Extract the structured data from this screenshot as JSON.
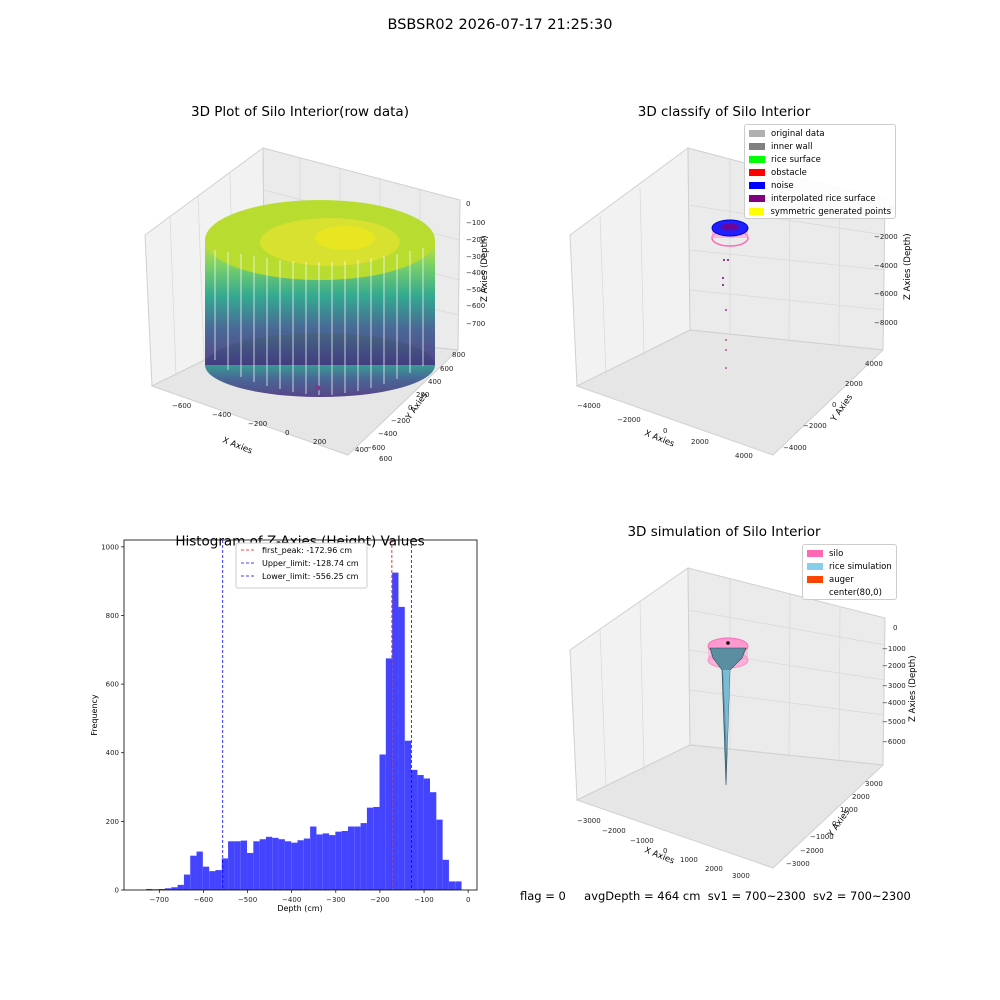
{
  "suptitle": "BSBSR02 2026-07-17 21:25:30",
  "panels": {
    "raw": {
      "title": "3D Plot of Silo Interior(row data)",
      "xlabel": "X Axies",
      "ylabel": "Y Axies",
      "zlabel": "Z Axies (Depth)",
      "xticks": [
        "−600",
        "−400",
        "−200",
        "0",
        "200",
        "400",
        "600"
      ],
      "yticks": [
        "800",
        "600",
        "400",
        "200",
        "0",
        "−200",
        "−400",
        "−600"
      ],
      "zticks": [
        "0",
        "−100",
        "−200",
        "−300",
        "−400",
        "−500",
        "−600",
        "−700"
      ]
    },
    "classify": {
      "title": "3D classify of Silo Interior",
      "xlabel": "X Axies",
      "ylabel": "Y Axies",
      "zlabel": "Z Axies (Depth)",
      "xticks": [
        "−4000",
        "−2000",
        "0",
        "2000",
        "4000"
      ],
      "yticks": [
        "4000",
        "2000",
        "0",
        "−2000",
        "−4000"
      ],
      "zticks": [
        "0",
        "−2000",
        "−4000",
        "−6000",
        "−8000"
      ],
      "legend": [
        {
          "label": "original data",
          "color": "#b0b0b0"
        },
        {
          "label": "inner wall",
          "color": "#808080"
        },
        {
          "label": "rice surface",
          "color": "#00ff00"
        },
        {
          "label": "obstacle",
          "color": "#ff0000"
        },
        {
          "label": "noise",
          "color": "#0000ff"
        },
        {
          "label": "interpolated rice surface",
          "color": "#800080"
        },
        {
          "label": "symmetric generated points",
          "color": "#ffff00"
        }
      ]
    },
    "simulation": {
      "title": "3D simulation of Silo Interior",
      "xlabel": "X Axies",
      "ylabel": "Y Axies",
      "zlabel": "Z Axies (Depth)",
      "xticks": [
        "−3000",
        "−2000",
        "−1000",
        "0",
        "1000",
        "2000",
        "3000"
      ],
      "yticks": [
        "3000",
        "2000",
        "1000",
        "0",
        "−1000",
        "−2000",
        "−3000"
      ],
      "zticks": [
        "0",
        "−1000",
        "−2000",
        "−3000",
        "−4000",
        "−5000",
        "−6000"
      ],
      "legend": [
        {
          "label": "silo",
          "color": "#ff69b4"
        },
        {
          "label": "rice simulation",
          "color": "#87ceeb"
        },
        {
          "label": "auger",
          "color": "#ff4500"
        },
        {
          "label": "center(80,0)",
          "color": "#ffffff"
        }
      ]
    }
  },
  "footer": {
    "flag": "flag = 0",
    "avg": "avgDepth = 464 cm",
    "sv1": "sv1 = 700~2300",
    "sv2": "sv2 = 700~2300"
  },
  "chart_data": {
    "type": "bar",
    "title": "Histogram of Z-Axies (Height) Values",
    "xlabel": "Depth (cm)",
    "ylabel": "Frequency",
    "xlim": [
      -780,
      20
    ],
    "ylim": [
      0,
      1020
    ],
    "xticks": [
      -700,
      -600,
      -500,
      -400,
      -300,
      -200,
      -100,
      0
    ],
    "xtick_labels": [
      "−700",
      "−600",
      "−500",
      "−400",
      "−300",
      "−200",
      "−100",
      "0"
    ],
    "yticks": [
      0,
      200,
      400,
      600,
      800,
      1000
    ],
    "bin_start": -730,
    "bin_width": 14.3,
    "values": [
      3,
      2,
      3,
      5,
      8,
      15,
      45,
      100,
      112,
      68,
      55,
      58,
      92,
      142,
      142,
      144,
      108,
      142,
      148,
      155,
      152,
      148,
      142,
      138,
      145,
      150,
      185,
      162,
      165,
      160,
      170,
      172,
      185,
      185,
      195,
      240,
      242,
      395,
      675,
      925,
      825,
      435,
      350,
      335,
      325,
      285,
      205,
      88,
      25,
      25
    ],
    "bar_color": "#4444ff",
    "lines": [
      {
        "label": "first_peak: -172.96 cm",
        "x": -172.96,
        "color": "#ff0000"
      },
      {
        "label": "Upper_limit: -128.74 cm",
        "x": -128.74,
        "color": "#0000ff"
      },
      {
        "label": "Lower_limit: -556.25 cm",
        "x": -556.25,
        "color": "#0000ff"
      }
    ],
    "legend_position": "top-center"
  }
}
